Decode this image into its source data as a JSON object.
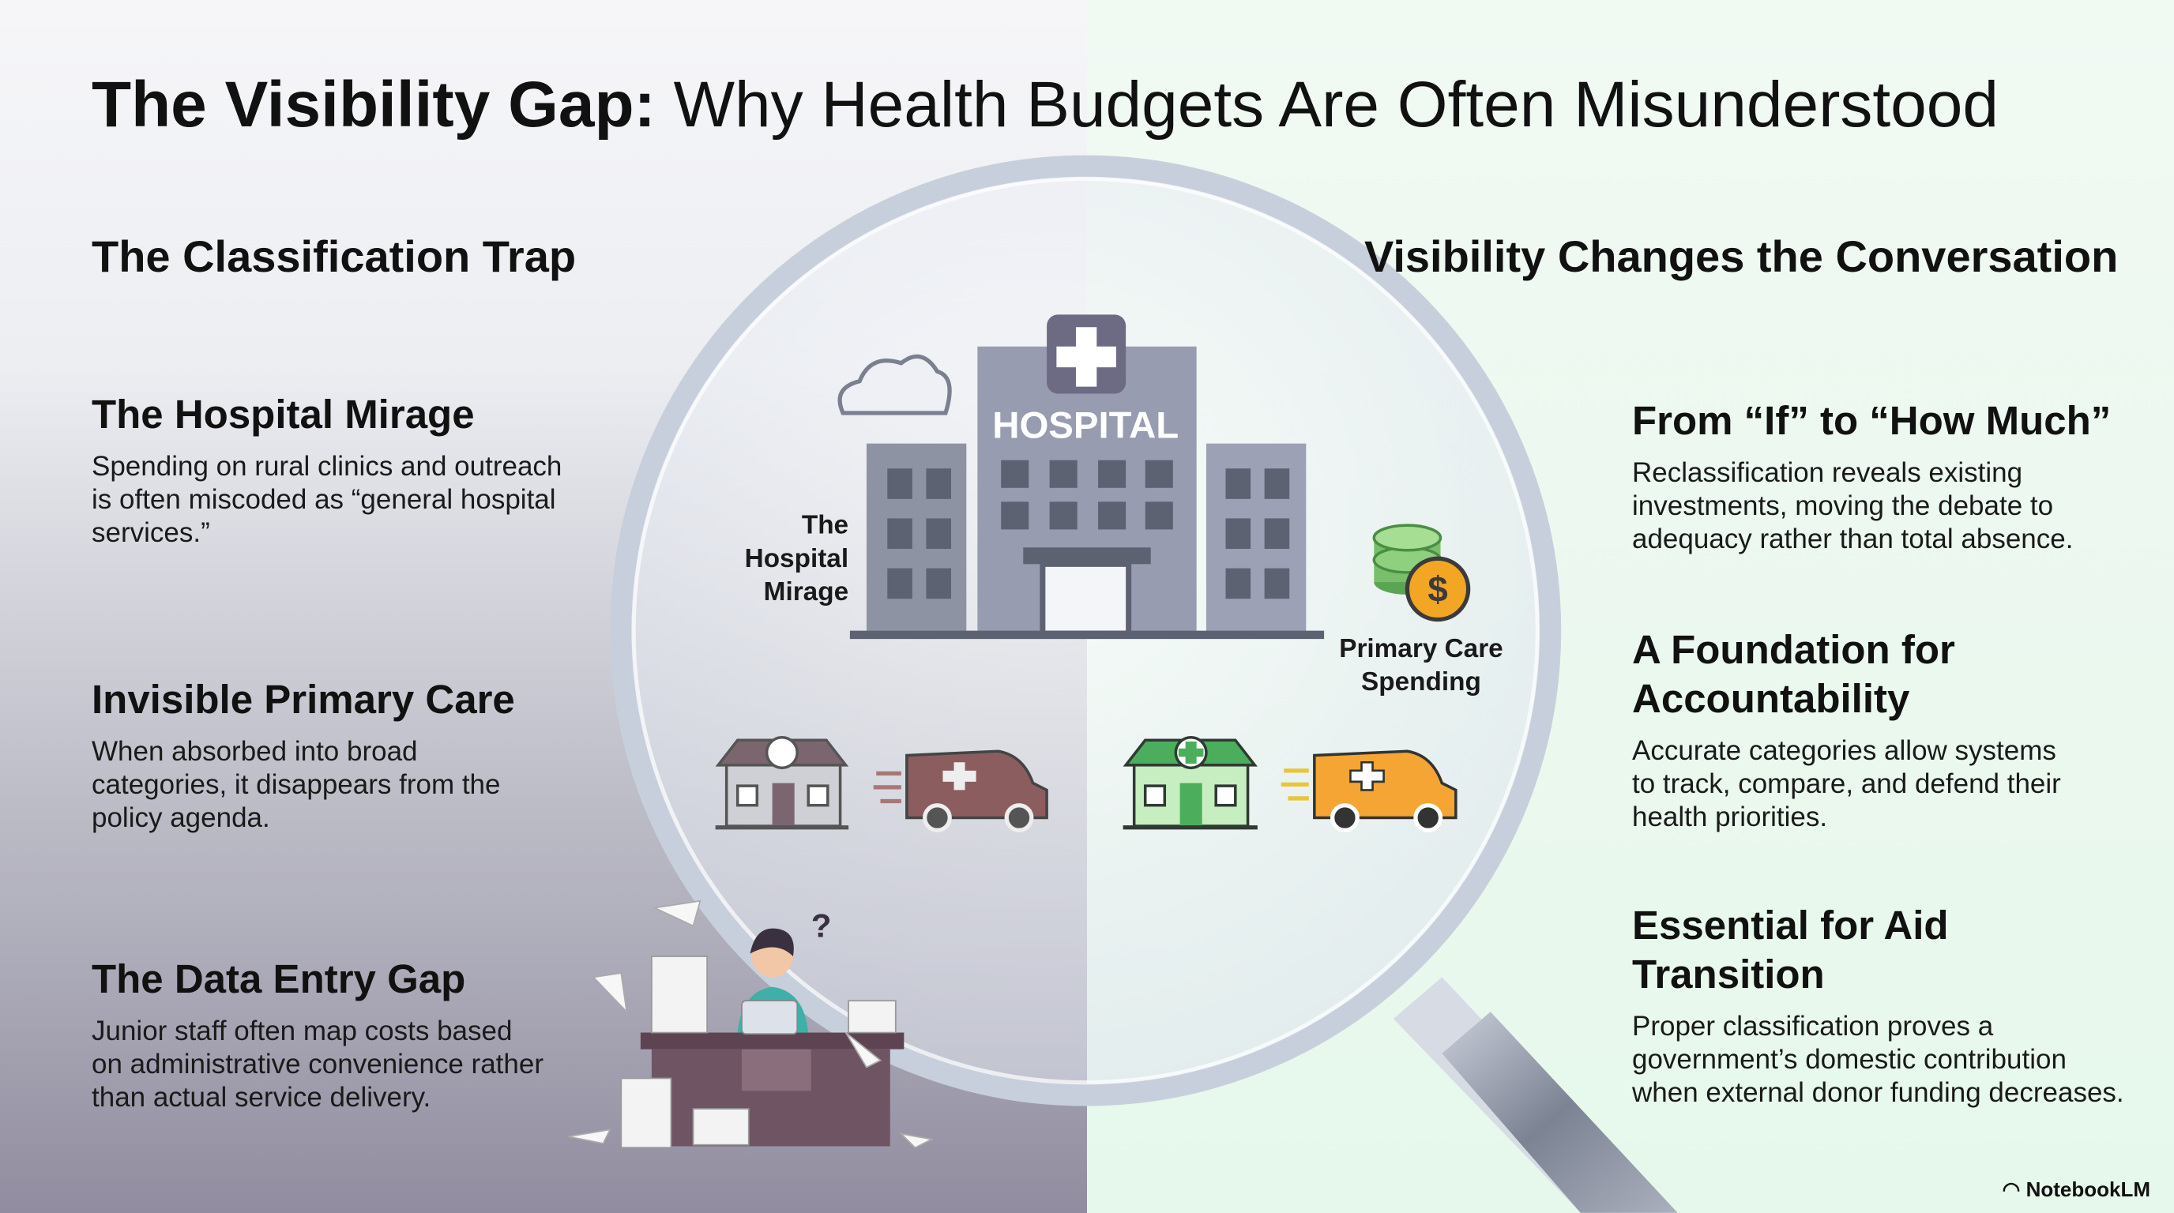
{
  "header": {
    "title_lead": "The Visibility Gap:",
    "title_rest": "Why Health Budgets Are Often Misunderstood"
  },
  "left": {
    "heading": "The Classification Trap",
    "items": [
      {
        "title": [
          "The Hospital Mirage"
        ],
        "body": [
          "Spending on rural clinics and outreach",
          "is often miscoded as “general hospital",
          "services.”"
        ]
      },
      {
        "title": [
          "Invisible Primary Care"
        ],
        "body": [
          "When absorbed into broad",
          "categories, it disappears from the",
          "policy agenda."
        ]
      },
      {
        "title": [
          "The Data Entry Gap"
        ],
        "body": [
          "Junior staff often map costs based",
          "on administrative convenience rather",
          "than actual service delivery."
        ]
      }
    ]
  },
  "right": {
    "heading": "Visibility Changes the Conversation",
    "items": [
      {
        "title": [
          "From “If” to “How Much”"
        ],
        "body": [
          "Reclassification reveals existing",
          "investments, moving the debate to",
          "adequacy rather than total absence."
        ]
      },
      {
        "title": [
          "A Foundation for",
          "Accountability"
        ],
        "body": [
          "Accurate categories allow systems",
          "to track, compare, and defend their",
          "health priorities."
        ]
      },
      {
        "title": [
          "Essential for Aid",
          "Transition"
        ],
        "body": [
          "Proper classification proves a",
          "government’s domestic contribution",
          "when external donor funding decreases."
        ]
      }
    ]
  },
  "illustration": {
    "hospital_sign": "HOSPITAL",
    "mirage_label": [
      "The",
      "Hospital",
      "Mirage"
    ],
    "spending_label": [
      "Primary Care",
      "Spending"
    ]
  },
  "footer": {
    "brand": "NotebookLM"
  }
}
